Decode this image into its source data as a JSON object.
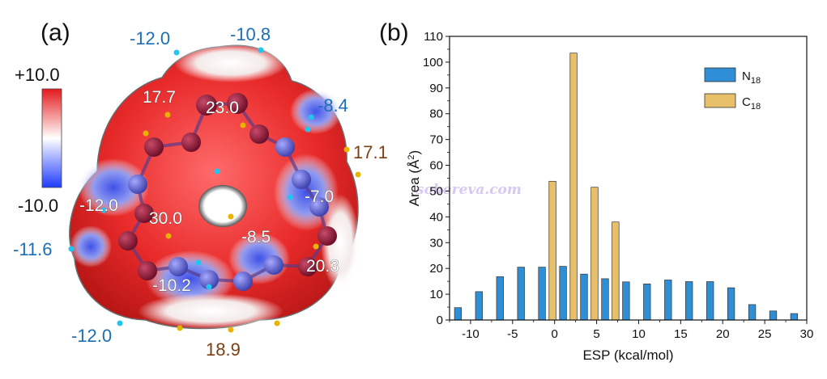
{
  "panel_a": {
    "label": "(a)",
    "colorbar": {
      "max_label": "+10.0",
      "min_label": "-10.0"
    },
    "labels_outside": [
      {
        "text": "-12.0",
        "color": "#1a6fb5"
      },
      {
        "text": "-10.8",
        "color": "#1a6fb5"
      },
      {
        "text": "-8.4",
        "color": "#1a6fb5"
      },
      {
        "text": "17.1",
        "color": "#7a3f14"
      },
      {
        "text": "-11.6",
        "color": "#1a6fb5"
      },
      {
        "text": "-12.0",
        "color": "#1a6fb5"
      },
      {
        "text": "18.9",
        "color": "#7a3f14"
      }
    ],
    "labels_on_surface": [
      {
        "text": "17.7"
      },
      {
        "text": "23.0"
      },
      {
        "text": "-12.0"
      },
      {
        "text": "30.0"
      },
      {
        "text": "-7.0"
      },
      {
        "text": "-8.5"
      },
      {
        "text": "20.3"
      },
      {
        "text": "-10.2"
      }
    ]
  },
  "panel_b": {
    "label": "(b)",
    "watermark": "sobereva.com"
  },
  "chart_data": {
    "type": "bar",
    "xlabel": "ESP (kcal/mol)",
    "ylabel": "Area (Å²)",
    "ylabel_base": "Area (Å",
    "ylabel_sup": "2",
    "ylabel_close": ")",
    "xlim": [
      -12.5,
      30
    ],
    "ylim": [
      0,
      110
    ],
    "xticks": [
      -10,
      -5,
      0,
      5,
      10,
      15,
      20,
      25,
      30
    ],
    "xtick_labels": [
      "-10",
      "-5",
      "0",
      "5",
      "10",
      "15",
      "20",
      "25",
      "30"
    ],
    "yticks": [
      0,
      10,
      20,
      30,
      40,
      50,
      60,
      70,
      80,
      90,
      100,
      110
    ],
    "ytick_labels": [
      "0",
      "10",
      "20",
      "30",
      "40",
      "50",
      "60",
      "70",
      "80",
      "90",
      "100",
      "110"
    ],
    "legend_position": "top-right",
    "series": [
      {
        "name": "N18",
        "legend_base": "N",
        "legend_sub": "18",
        "color": "#2e8ed6",
        "x": [
          -11.5,
          -9,
          -6.5,
          -4,
          -1.5,
          1,
          3.5,
          6,
          8.5,
          11,
          13.5,
          16,
          18.5,
          21,
          23.5,
          26,
          28.5
        ],
        "values": [
          4.8,
          11,
          16.8,
          20.5,
          20.5,
          20.8,
          17.8,
          16,
          14.8,
          14,
          15.5,
          14.9,
          14.9,
          12.5,
          6,
          3.5,
          2.5
        ]
      },
      {
        "name": "C18",
        "legend_base": "C",
        "legend_sub": "18",
        "color": "#e8c06a",
        "x": [
          -0.25,
          2.25,
          4.75,
          7.25
        ],
        "values": [
          53.8,
          103.5,
          51.5,
          38
        ]
      }
    ]
  }
}
